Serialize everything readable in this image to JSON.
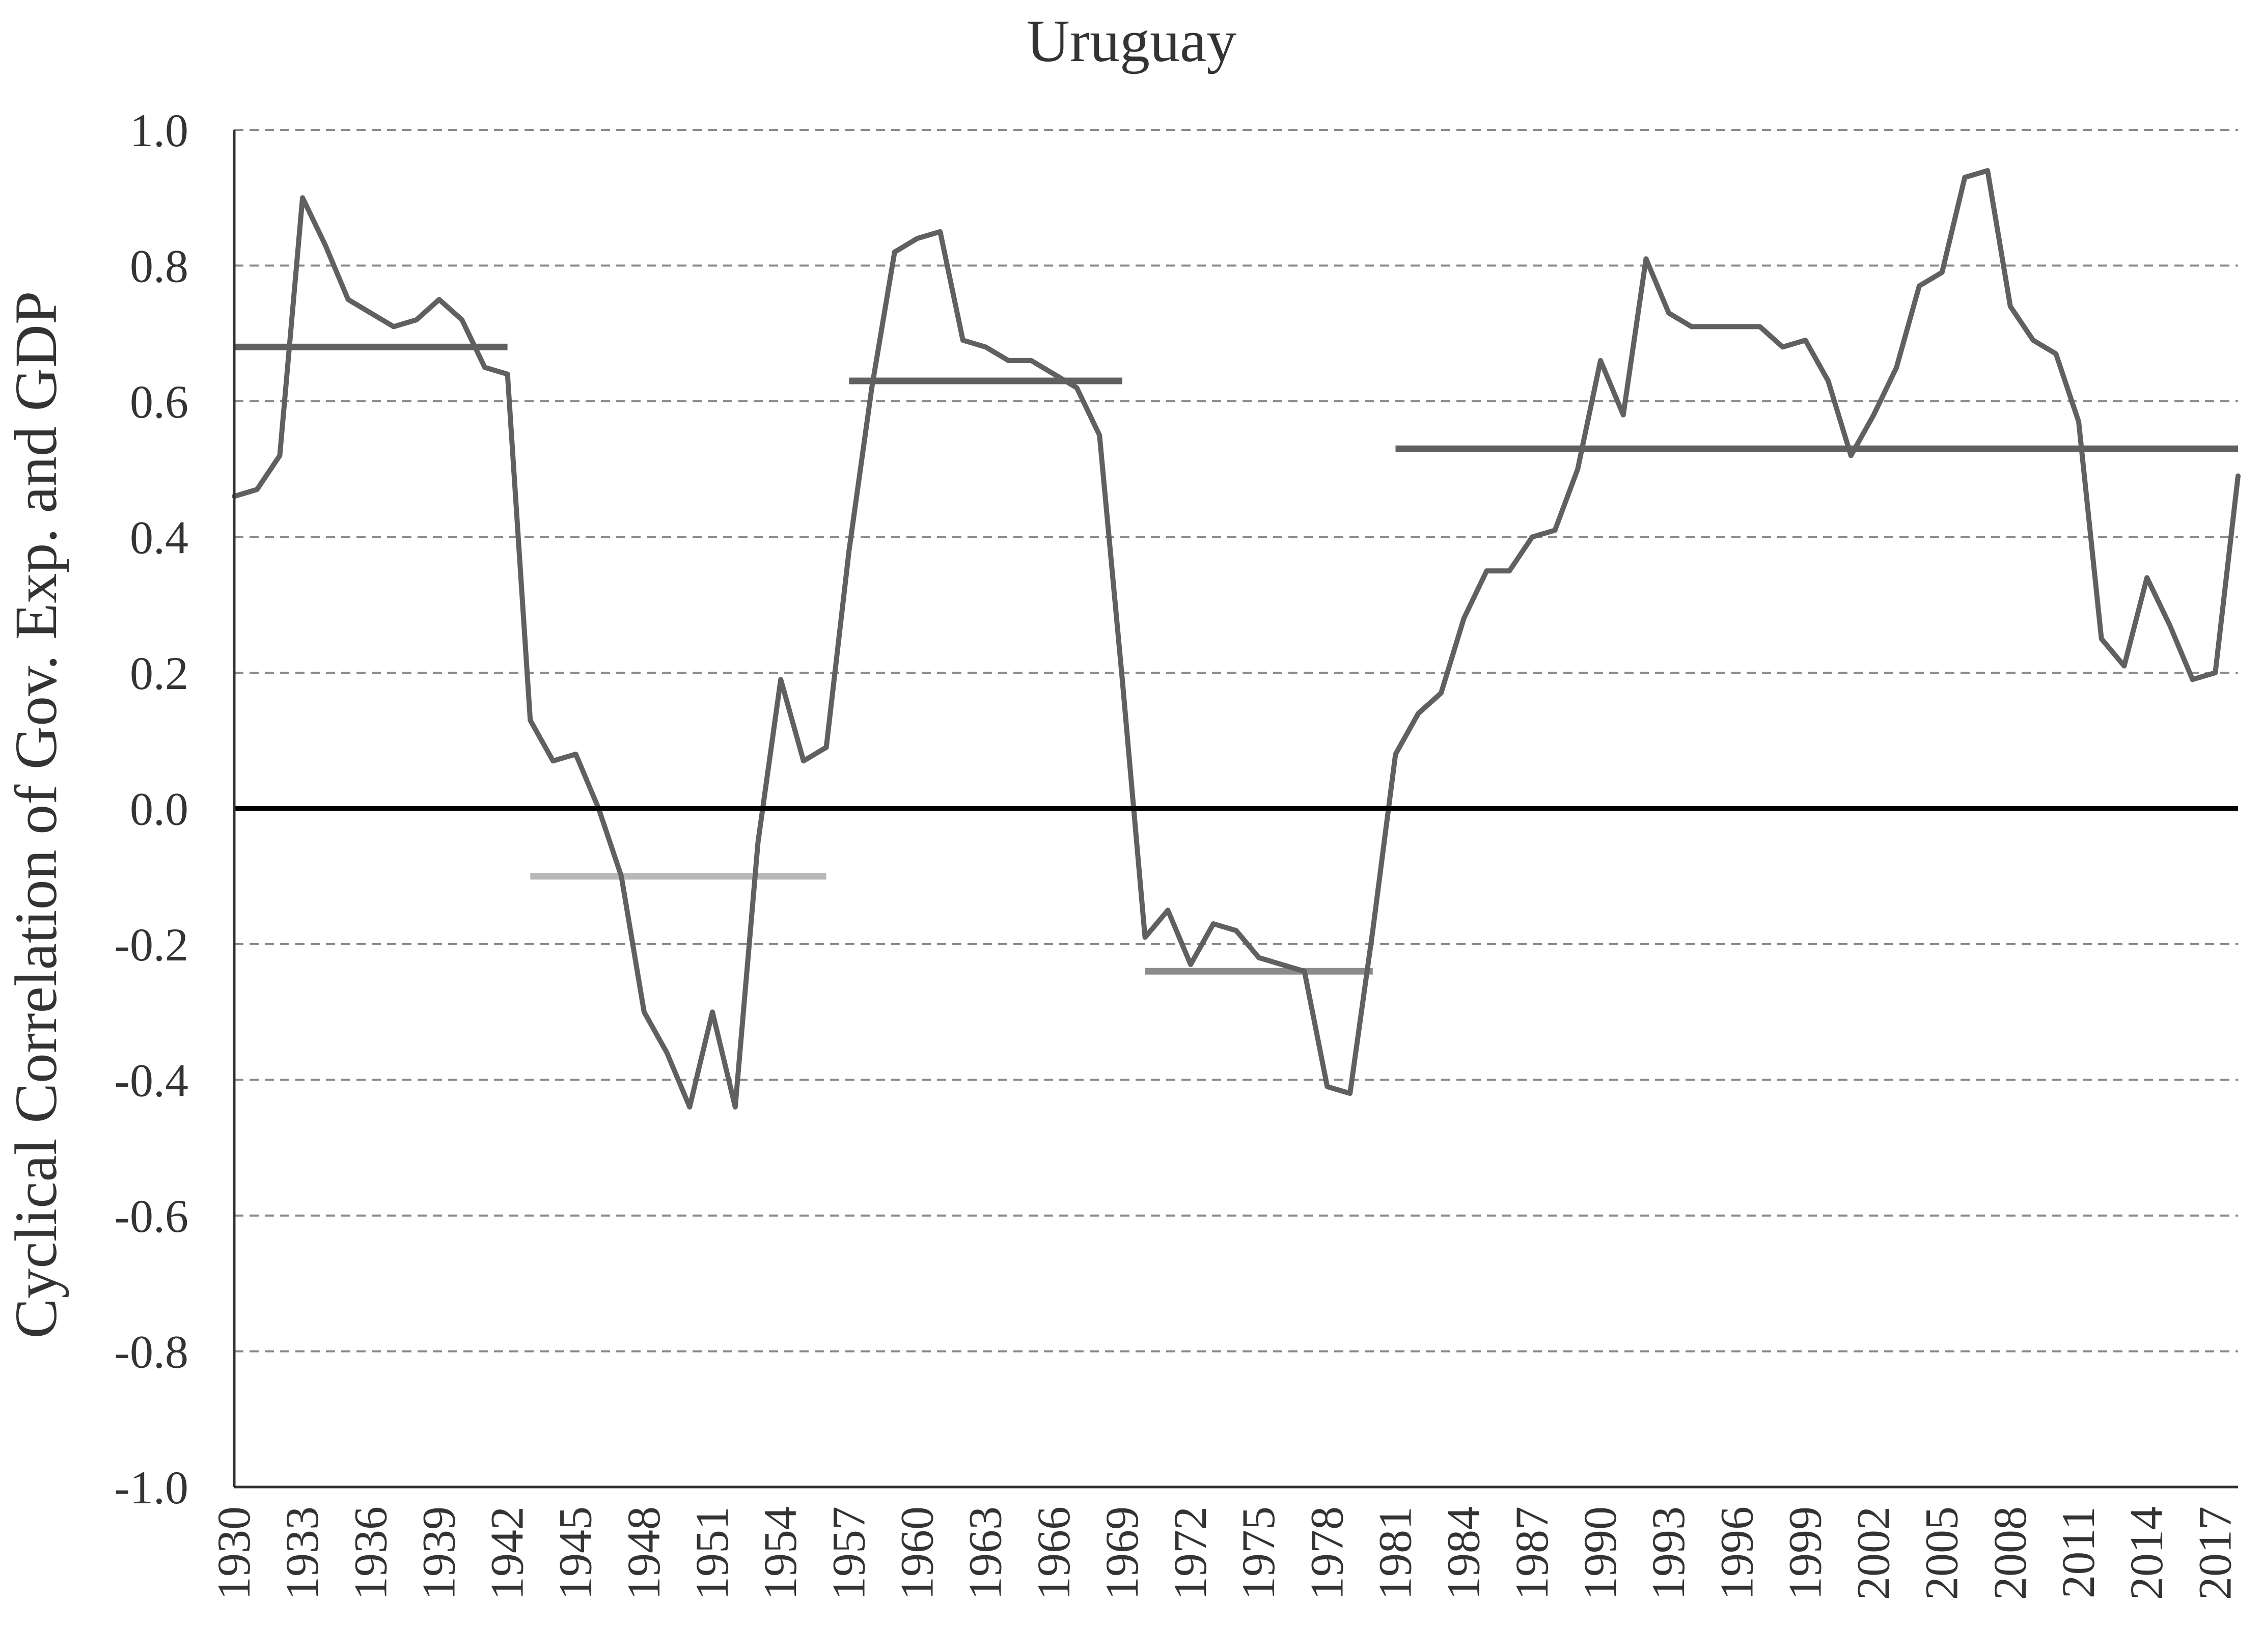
{
  "chart_data": {
    "type": "line",
    "title": "Uruguay",
    "xlabel": "",
    "ylabel": "Cyclical Correlation of Gov. Exp. and GDP",
    "ylim": [
      -1.0,
      1.0
    ],
    "xlim": [
      1930,
      2018
    ],
    "y_ticks": [
      "1.0",
      "0.8",
      "0.6",
      "0.4",
      "0.2",
      "0.0",
      "-0.2",
      "-0.4",
      "-0.6",
      "-0.8",
      "-1.0"
    ],
    "y_tick_values": [
      1.0,
      0.8,
      0.6,
      0.4,
      0.2,
      0.0,
      -0.2,
      -0.4,
      -0.6,
      -0.8,
      -1.0
    ],
    "x_ticks": [
      "1930",
      "1933",
      "1936",
      "1939",
      "1942",
      "1945",
      "1948",
      "1951",
      "1954",
      "1957",
      "1960",
      "1963",
      "1966",
      "1969",
      "1972",
      "1975",
      "1978",
      "1981",
      "1984",
      "1987",
      "1990",
      "1993",
      "1996",
      "1999",
      "2002",
      "2005",
      "2008",
      "2011",
      "2014",
      "2017"
    ],
    "x_tick_values": [
      1930,
      1933,
      1936,
      1939,
      1942,
      1945,
      1948,
      1951,
      1954,
      1957,
      1960,
      1963,
      1966,
      1969,
      1972,
      1975,
      1978,
      1981,
      1984,
      1987,
      1990,
      1993,
      1996,
      1999,
      2002,
      2005,
      2008,
      2011,
      2014,
      2017
    ],
    "grid": "horizontal dashed",
    "legend": "none",
    "zero_line": 0.0,
    "series": [
      {
        "x": [
          1930,
          1931,
          1932,
          1933,
          1934,
          1935,
          1936,
          1937,
          1938,
          1939,
          1940,
          1941,
          1942,
          1943,
          1944,
          1945,
          1946,
          1947,
          1948,
          1949,
          1950,
          1951,
          1952,
          1953,
          1954,
          1955,
          1956,
          1957,
          1958,
          1959,
          1960,
          1961,
          1962,
          1963,
          1964,
          1965,
          1966,
          1967,
          1968,
          1969,
          1970,
          1971,
          1972,
          1973,
          1974,
          1975,
          1976,
          1977,
          1978,
          1979,
          1980,
          1981,
          1982,
          1983,
          1984,
          1985,
          1986,
          1987,
          1988,
          1989,
          1990,
          1991,
          1992,
          1993,
          1994,
          1995,
          1996,
          1997,
          1998,
          1999,
          2000,
          2001,
          2002,
          2003,
          2004,
          2005,
          2006,
          2007,
          2008,
          2009,
          2010,
          2011,
          2012,
          2013,
          2014,
          2015,
          2016,
          2017,
          2018
        ],
        "values": [
          0.46,
          0.47,
          0.52,
          0.9,
          0.83,
          0.75,
          0.73,
          0.71,
          0.72,
          0.75,
          0.72,
          0.65,
          0.64,
          0.13,
          0.07,
          0.08,
          0.0,
          -0.1,
          -0.3,
          -0.36,
          -0.44,
          -0.3,
          -0.44,
          -0.05,
          0.19,
          0.07,
          0.09,
          0.38,
          0.62,
          0.82,
          0.84,
          0.85,
          0.69,
          0.68,
          0.66,
          0.66,
          0.64,
          0.62,
          0.55,
          0.19,
          -0.19,
          -0.15,
          -0.23,
          -0.17,
          -0.18,
          -0.22,
          -0.23,
          -0.24,
          -0.41,
          -0.42,
          -0.18,
          0.08,
          0.14,
          0.17,
          0.28,
          0.35,
          0.35,
          0.4,
          0.41,
          0.5,
          0.66,
          0.58,
          0.81,
          0.73,
          0.71,
          0.71,
          0.71,
          0.71,
          0.68,
          0.69,
          0.63,
          0.52,
          0.58,
          0.65,
          0.77,
          0.79,
          0.93,
          0.94,
          0.74,
          0.69,
          0.67,
          0.57,
          0.25,
          0.21,
          0.34,
          0.27,
          0.19,
          0.2,
          0.49
        ],
        "color": "#606060"
      }
    ],
    "period_averages": [
      {
        "x_start": 1930,
        "x_end": 1942,
        "value": 0.68,
        "color": "#606060"
      },
      {
        "x_start": 1943,
        "x_end": 1956,
        "value": -0.1,
        "color": "#b8b8b8"
      },
      {
        "x_start": 1957,
        "x_end": 1969,
        "value": 0.63,
        "color": "#606060"
      },
      {
        "x_start": 1970,
        "x_end": 1980,
        "value": -0.24,
        "color": "#8c8c8c"
      },
      {
        "x_start": 1981,
        "x_end": 2018,
        "value": 0.53,
        "color": "#606060"
      }
    ],
    "colors": {
      "zero_line": "#000000",
      "grid": "#8a8a8a",
      "axis": "#333333",
      "text": "#333333"
    }
  }
}
